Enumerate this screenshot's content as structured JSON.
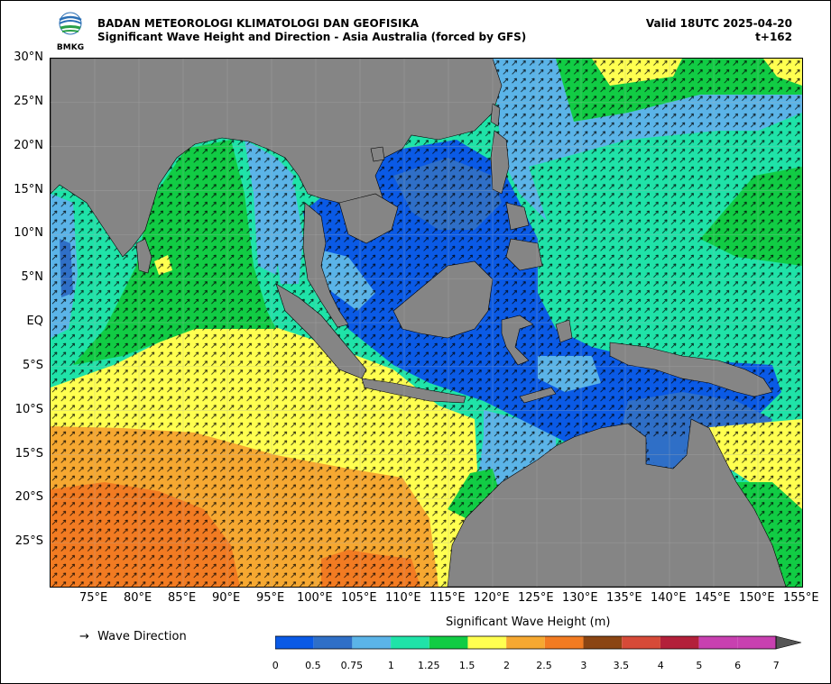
{
  "header": {
    "agency": "BADAN METEOROLOGI KLIMATOLOGI DAN GEOFISIKA",
    "product": "Significant Wave Height and Direction - Asia Australia (forced by GFS)",
    "valid": "Valid 18UTC 2025-04-20",
    "lead": "t+162",
    "logo_text": "BMKG"
  },
  "axes": {
    "lat_ticks": [
      "30°N",
      "25°N",
      "20°N",
      "15°N",
      "10°N",
      "5°N",
      "EQ",
      "5°S",
      "10°S",
      "15°S",
      "20°S",
      "25°S"
    ],
    "lon_ticks": [
      "75°E",
      "80°E",
      "85°E",
      "90°E",
      "95°E",
      "100°E",
      "105°E",
      "110°E",
      "115°E",
      "120°E",
      "125°E",
      "130°E",
      "135°E",
      "140°E",
      "145°E",
      "150°E",
      "155°E"
    ],
    "lon_range": [
      70,
      155
    ],
    "lat_range": [
      -30,
      30
    ]
  },
  "legend": {
    "wave_direction_symbol": "→",
    "wave_direction_label": "Wave Direction"
  },
  "colorbar": {
    "title": "Significant Wave Height (m)",
    "labels": [
      "0",
      "0.5",
      "0.75",
      "1",
      "1.25",
      "1.5",
      "2",
      "2.5",
      "3",
      "3.5",
      "4",
      "5",
      "6",
      "7"
    ],
    "colors": [
      "#0a5ae6",
      "#2f6fc7",
      "#5bb4e8",
      "#1fe3a8",
      "#11cc44",
      "#ffff50",
      "#f6a831",
      "#f27b22",
      "#8b4513",
      "#d64a38",
      "#b3203a",
      "#c840b0",
      "#c840b0"
    ],
    "extend": "max"
  },
  "map": {
    "land_color": "#858585",
    "grid": true
  }
}
